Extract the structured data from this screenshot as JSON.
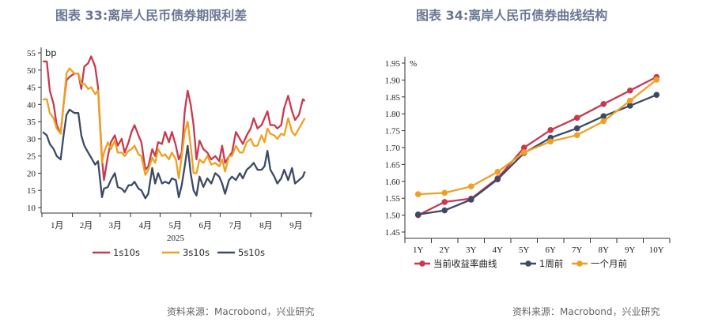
{
  "chart_data": [
    {
      "type": "line",
      "title": "图表 33:离岸人民币债券期限利差",
      "unit_label": "bp",
      "xlabel": "2025",
      "x_tick_labels": [
        "1月",
        "2月",
        "3月",
        "4月",
        "5月",
        "6月",
        "7月",
        "8月",
        "9月"
      ],
      "ylim": [
        10,
        55
      ],
      "y_ticks": [
        10,
        15,
        20,
        25,
        30,
        35,
        40,
        45,
        50,
        55
      ],
      "grid": false,
      "legend": "bottom",
      "x": [
        "01-02",
        "01-06",
        "01-09",
        "01-13",
        "01-16",
        "01-20",
        "01-23",
        "01-26",
        "01-29",
        "02-03",
        "02-07",
        "02-10",
        "02-13",
        "02-17",
        "02-20",
        "02-24",
        "02-27",
        "03-03",
        "03-05",
        "03-09",
        "03-12",
        "03-16",
        "03-19",
        "03-23",
        "03-26",
        "03-30",
        "04-02",
        "04-05",
        "04-09",
        "04-12",
        "04-16",
        "04-19",
        "04-23",
        "04-26",
        "04-29",
        "05-03",
        "05-06",
        "05-10",
        "05-13",
        "05-17",
        "05-20",
        "05-23",
        "05-26",
        "05-29",
        "06-01",
        "06-04",
        "06-07",
        "06-10",
        "06-14",
        "06-18",
        "06-22",
        "06-26",
        "06-30",
        "07-03",
        "07-06",
        "07-10",
        "07-13",
        "07-17",
        "07-21",
        "07-24",
        "07-28",
        "08-01",
        "08-04",
        "08-08",
        "08-12",
        "08-15",
        "08-18",
        "08-21",
        "08-25",
        "08-28",
        "09-01",
        "09-04",
        "09-08",
        "09-12",
        "09-15",
        "09-19",
        "09-23",
        "09-25"
      ],
      "series": [
        {
          "name": "1s10s",
          "color": "#c8394f",
          "values": [
            52.5,
            52.5,
            44,
            40,
            34,
            31.5,
            40,
            47,
            48,
            49,
            49,
            44.5,
            51,
            52,
            54,
            51,
            45,
            24,
            18,
            25,
            29,
            31,
            28,
            30,
            26,
            29,
            32,
            34,
            31,
            29,
            21,
            22,
            27,
            25,
            29,
            28.5,
            32,
            29,
            32,
            28,
            24,
            26,
            38,
            44,
            40,
            34,
            24,
            29.5,
            27,
            26,
            24,
            25,
            23.5,
            28,
            23,
            25,
            26,
            32,
            30,
            28.5,
            31,
            33,
            36,
            33,
            34,
            36,
            38,
            34,
            34,
            33,
            34,
            39,
            42.5,
            38,
            35.5,
            37,
            41.5,
            41
          ]
        },
        {
          "name": "3s10s",
          "color": "#f0a020",
          "values": [
            41.5,
            41.5,
            37.5,
            36,
            33,
            31.5,
            40,
            49,
            50.5,
            49,
            49,
            46,
            46,
            44.5,
            45,
            43,
            44,
            23,
            26,
            29,
            27,
            29.5,
            26,
            26,
            25,
            26.5,
            27,
            28,
            25.5,
            25,
            19.5,
            21,
            24.5,
            23,
            27,
            25,
            25.5,
            24,
            26,
            24,
            18.5,
            25,
            32,
            35,
            28,
            20,
            20,
            24,
            23,
            25,
            22.5,
            23,
            22,
            24,
            20.5,
            25,
            25,
            28,
            26,
            26,
            29,
            30,
            28,
            28,
            31,
            29,
            33,
            31.5,
            31,
            30,
            31.5,
            31,
            36,
            32,
            31,
            33,
            35,
            36
          ]
        },
        {
          "name": "5s10s",
          "color": "#3c4a66",
          "values": [
            32,
            31,
            28.5,
            27,
            25,
            24,
            31,
            37,
            38.5,
            37.5,
            37.5,
            31,
            28,
            26,
            24.5,
            22.5,
            23.5,
            13,
            15.5,
            16,
            18,
            20,
            16,
            15.5,
            14.5,
            16.5,
            16.5,
            17.5,
            15.5,
            15,
            12.7,
            14,
            21.5,
            17,
            20,
            17,
            17.5,
            17,
            18.5,
            18,
            13,
            16.5,
            22,
            28,
            20,
            15,
            13.5,
            19,
            16,
            18.5,
            17,
            20,
            19,
            17,
            14,
            18,
            19,
            18,
            20,
            18.5,
            21,
            22,
            23,
            21,
            21,
            22,
            26.5,
            21,
            19,
            17,
            18.5,
            21,
            18,
            21.5,
            17,
            18,
            19,
            20.5
          ]
        }
      ]
    },
    {
      "type": "line",
      "title": "图表 34:离岸人民币债券曲线结构",
      "unit_label": "%",
      "categories": [
        "1Y",
        "2Y",
        "3Y",
        "4Y",
        "5Y",
        "6Y",
        "7Y",
        "8Y",
        "9Y",
        "10Y"
      ],
      "ylim": [
        1.45,
        1.95
      ],
      "y_ticks": [
        "1.45",
        "1.50",
        "1.55",
        "1.60",
        "1.65",
        "1.70",
        "1.75",
        "1.80",
        "1.85",
        "1.90",
        "1.95"
      ],
      "grid": false,
      "legend": "bottom",
      "series": [
        {
          "name": "当前收益率曲线",
          "color": "#c8394f",
          "values": [
            1.5,
            1.539,
            1.549,
            1.609,
            1.7,
            1.752,
            1.788,
            1.829,
            1.869,
            1.909
          ]
        },
        {
          "name": "1周前",
          "color": "#3c4a66",
          "values": [
            1.502,
            1.514,
            1.546,
            1.606,
            1.684,
            1.729,
            1.757,
            1.793,
            1.824,
            1.856
          ]
        },
        {
          "name": "一个月前",
          "color": "#f0a020",
          "values": [
            1.562,
            1.566,
            1.585,
            1.628,
            1.686,
            1.718,
            1.737,
            1.778,
            1.839,
            1.901
          ]
        }
      ]
    }
  ],
  "source_left": "资料来源：Macrobond，兴业研究",
  "source_right": "资料来源：Macrobond，兴业研究"
}
